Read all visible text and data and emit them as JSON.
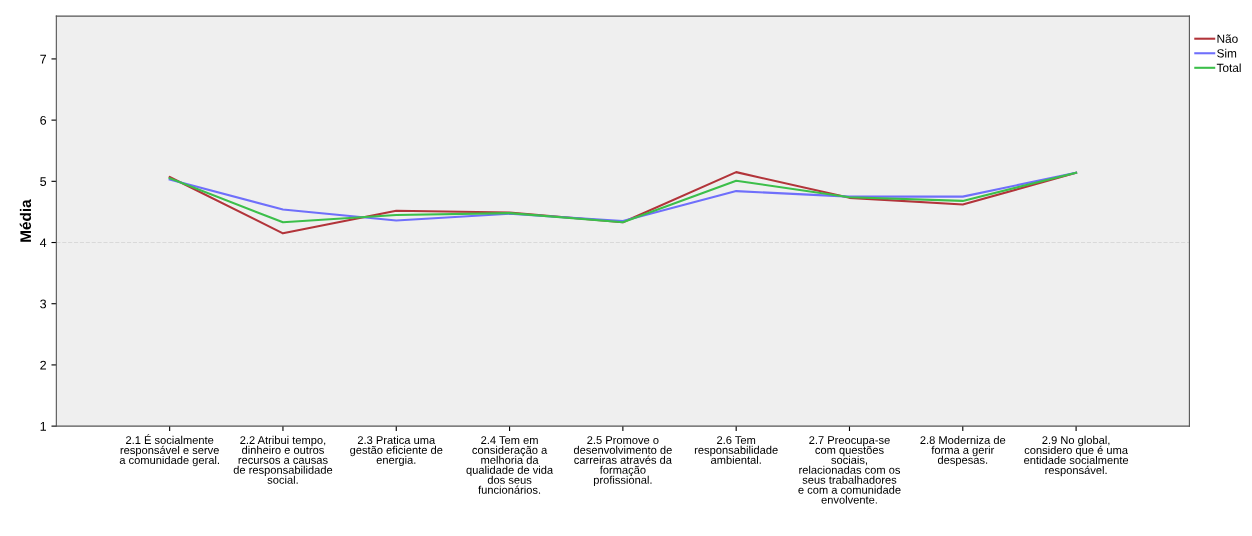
{
  "chart_data": {
    "type": "line",
    "ylabel": "Média",
    "categories": [
      "2.1 É socialmente\nresponsável e serve\na comunidade geral.",
      "2.2 Atribui tempo,\ndinheiro e outros\nrecursos a causas\nde responsabilidade\nsocial.",
      "2.3 Pratica uma\ngestão eficiente de\nenergia.",
      "2.4 Tem em\nconsideração a\nmelhoria da\nqualidade de vida\ndos seus\nfuncionários.",
      "2.5 Promove o\ndesenvolvimento de\ncarreiras através da\nformação\nprofissional.",
      "2.6 Tem\nresponsabilidade\nambiental.",
      "2.7 Preocupa-se\ncom questões\nsociais,\nrelacionadas com os\nseus trabalhadores\ne com a comunidade\nenvolvente.",
      "2.8 Moderniza de\nforma a gerir\ndespesas.",
      "2.9 No global,\nconsidero que é uma\nentidade socialmente\nresponsável."
    ],
    "series": [
      {
        "name": "Não",
        "color": "#b2343a",
        "values": [
          5.07,
          4.15,
          4.52,
          4.49,
          4.33,
          5.15,
          4.73,
          4.62,
          5.14
        ]
      },
      {
        "name": "Sim",
        "color": "#6f6ffb",
        "values": [
          5.03,
          4.54,
          4.36,
          4.47,
          4.35,
          4.84,
          4.75,
          4.75,
          5.14
        ]
      },
      {
        "name": "Total",
        "color": "#3cbf4a",
        "values": [
          5.05,
          4.33,
          4.45,
          4.48,
          4.33,
          5.01,
          4.74,
          4.68,
          5.14
        ]
      }
    ],
    "ylim": [
      1,
      7.7
    ],
    "yticks": [
      1,
      2,
      3,
      4,
      5,
      6,
      7
    ],
    "ref_lines": [
      {
        "axis": "y",
        "value": 4,
        "color": "#d9d9d9",
        "line_style": "dashed"
      }
    ],
    "grid": false,
    "legend": "top right",
    "marker": "none",
    "line_style": "solid"
  }
}
